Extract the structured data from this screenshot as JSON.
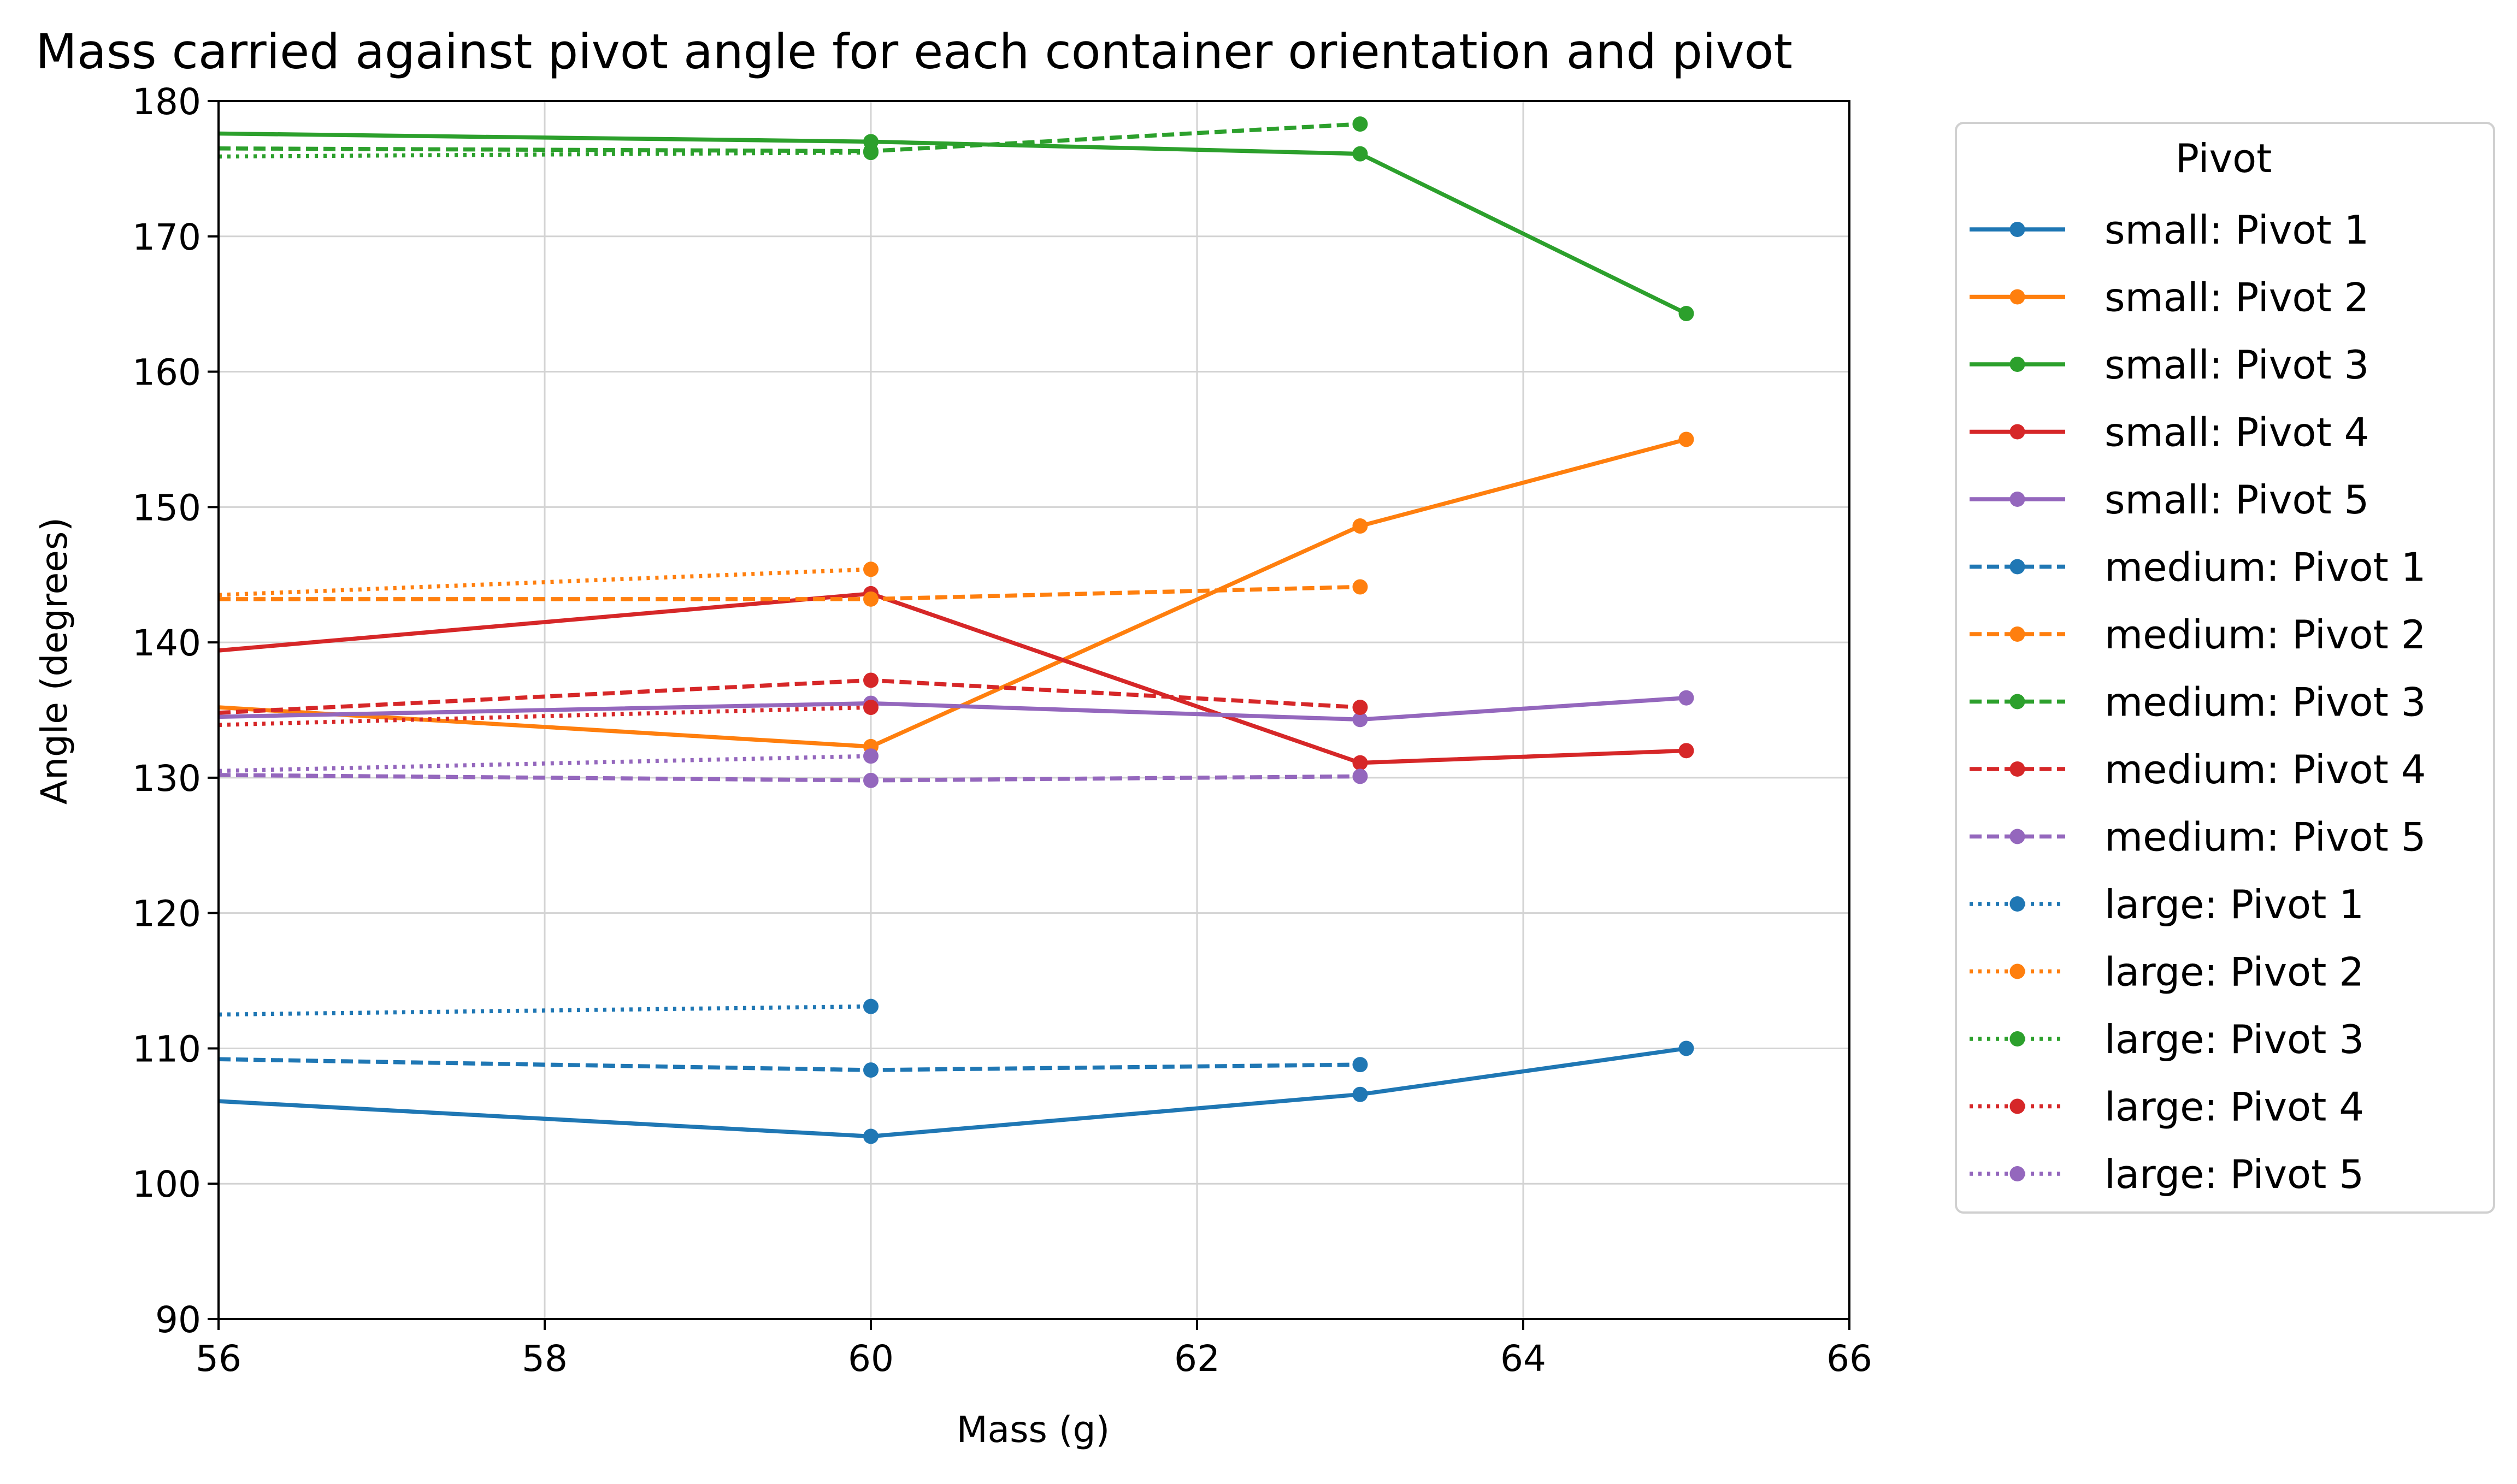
{
  "chart_data": {
    "type": "line",
    "title": "Mass carried against pivot angle for each container orientation and pivot",
    "xlabel": "Mass (g)",
    "ylabel": "Angle (degrees)",
    "xlim": [
      56,
      66
    ],
    "ylim": [
      90,
      180
    ],
    "xticks": [
      56,
      58,
      60,
      62,
      64,
      66
    ],
    "yticks": [
      90,
      100,
      110,
      120,
      130,
      140,
      150,
      160,
      170,
      180
    ],
    "grid": true,
    "legend": {
      "title": "Pivot",
      "placement": "outside-right"
    },
    "series": [
      {
        "name": "small: Pivot 1",
        "color": "#1f77b4",
        "dash": "solid",
        "x": [
          56,
          60,
          63,
          65
        ],
        "y": [
          106.1,
          103.5,
          106.6,
          110.0
        ]
      },
      {
        "name": "small: Pivot 2",
        "color": "#ff7f0e",
        "dash": "solid",
        "x": [
          56,
          60,
          63,
          65
        ],
        "y": [
          135.2,
          132.3,
          148.6,
          155.0
        ]
      },
      {
        "name": "small: Pivot 3",
        "color": "#2ca02c",
        "dash": "solid",
        "x": [
          56,
          60,
          63,
          65
        ],
        "y": [
          177.6,
          177.0,
          176.1,
          164.3
        ]
      },
      {
        "name": "small: Pivot 4",
        "color": "#d62728",
        "dash": "solid",
        "x": [
          56,
          60,
          63,
          65
        ],
        "y": [
          139.4,
          143.6,
          131.1,
          132.0
        ]
      },
      {
        "name": "small: Pivot 5",
        "color": "#9467bd",
        "dash": "solid",
        "x": [
          56,
          60,
          63,
          65
        ],
        "y": [
          134.5,
          135.5,
          134.3,
          135.9
        ]
      },
      {
        "name": "medium: Pivot 1",
        "color": "#1f77b4",
        "dash": "dashed",
        "x": [
          56,
          60,
          63
        ],
        "y": [
          109.2,
          108.4,
          108.8
        ]
      },
      {
        "name": "medium: Pivot 2",
        "color": "#ff7f0e",
        "dash": "dashed",
        "x": [
          56,
          60,
          63
        ],
        "y": [
          143.2,
          143.2,
          144.1
        ]
      },
      {
        "name": "medium: Pivot 3",
        "color": "#2ca02c",
        "dash": "dashed",
        "x": [
          56,
          60,
          63
        ],
        "y": [
          176.5,
          176.3,
          178.3
        ]
      },
      {
        "name": "medium: Pivot 4",
        "color": "#d62728",
        "dash": "dashed",
        "x": [
          56,
          60,
          63
        ],
        "y": [
          134.8,
          137.2,
          135.2
        ]
      },
      {
        "name": "medium: Pivot 5",
        "color": "#9467bd",
        "dash": "dashed",
        "x": [
          56,
          60,
          63
        ],
        "y": [
          130.2,
          129.8,
          130.1
        ]
      },
      {
        "name": "large: Pivot 1",
        "color": "#1f77b4",
        "dash": "dotted",
        "x": [
          56,
          60
        ],
        "y": [
          112.5,
          113.1
        ]
      },
      {
        "name": "large: Pivot 2",
        "color": "#ff7f0e",
        "dash": "dotted",
        "x": [
          56,
          60
        ],
        "y": [
          143.5,
          145.4
        ]
      },
      {
        "name": "large: Pivot 3",
        "color": "#2ca02c",
        "dash": "dotted",
        "x": [
          56,
          60
        ],
        "y": [
          175.9,
          176.2
        ]
      },
      {
        "name": "large: Pivot 4",
        "color": "#d62728",
        "dash": "dotted",
        "x": [
          56,
          60
        ],
        "y": [
          133.9,
          135.2
        ]
      },
      {
        "name": "large: Pivot 5",
        "color": "#9467bd",
        "dash": "dotted",
        "x": [
          56,
          60
        ],
        "y": [
          130.5,
          131.6
        ]
      }
    ]
  }
}
